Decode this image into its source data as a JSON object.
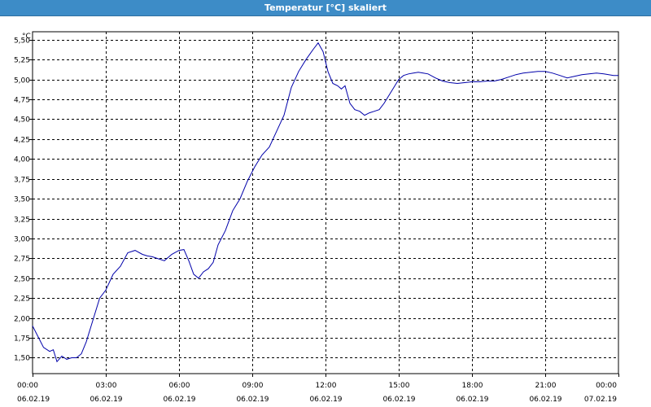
{
  "window": {
    "title": "Temperatur [°C] skaliert"
  },
  "colors": {
    "line": "#0000aa",
    "title_bar": "#3d8cc7",
    "grid": "#000000"
  },
  "chart_data": {
    "type": "line",
    "title": "Temperatur [°C] skaliert",
    "yunit": "°C",
    "xlabel": "",
    "ylabel": "",
    "grid": true,
    "legend": "none",
    "xlim_hours": [
      0,
      24
    ],
    "ylim": [
      1.3,
      5.6
    ],
    "yticks": [
      "1,50",
      "1,75",
      "2,00",
      "2,25",
      "2,50",
      "2,75",
      "3,00",
      "3,25",
      "3,50",
      "3,75",
      "4,00",
      "4,25",
      "4,50",
      "4,75",
      "5,00",
      "5,25",
      "5,50"
    ],
    "ytick_values": [
      1.5,
      1.75,
      2.0,
      2.25,
      2.5,
      2.75,
      3.0,
      3.25,
      3.5,
      3.75,
      4.0,
      4.25,
      4.5,
      4.75,
      5.0,
      5.25,
      5.5
    ],
    "xticks": [
      {
        "time": "00:00",
        "date": "06.02.19"
      },
      {
        "time": "03:00",
        "date": "06.02.19"
      },
      {
        "time": "06:00",
        "date": "06.02.19"
      },
      {
        "time": "09:00",
        "date": "06.02.19"
      },
      {
        "time": "12:00",
        "date": "06.02.19"
      },
      {
        "time": "15:00",
        "date": "06.02.19"
      },
      {
        "time": "18:00",
        "date": "06.02.19"
      },
      {
        "time": "21:00",
        "date": "06.02.19"
      },
      {
        "time": "00:00",
        "date": "07.02.19"
      }
    ],
    "series": [
      {
        "x": [
          0,
          0.2,
          0.45,
          0.7,
          0.85,
          1.0,
          1.2,
          1.4,
          1.6,
          1.8,
          2.0,
          2.2,
          2.5,
          2.75,
          3.0,
          3.3,
          3.6,
          3.9,
          4.2,
          4.5,
          4.7,
          4.9,
          5.1,
          5.4,
          5.7,
          6.0,
          6.2,
          6.4,
          6.6,
          6.8,
          7.0,
          7.2,
          7.4,
          7.6,
          7.9,
          8.2,
          8.5,
          8.8,
          9.1,
          9.4,
          9.7,
          10.0,
          10.3,
          10.6,
          10.9,
          11.2,
          11.5,
          11.7,
          11.9,
          12.1,
          12.3,
          12.5,
          12.65,
          12.8,
          13.0,
          13.2,
          13.4,
          13.6,
          13.8,
          14.0,
          14.2,
          14.4,
          14.6,
          14.8,
          15.0,
          15.2,
          15.4,
          15.6,
          15.8,
          16.0,
          16.2,
          16.5,
          16.8,
          17.1,
          17.4,
          17.7,
          18.0,
          18.3,
          18.6,
          18.9,
          19.2,
          19.5,
          19.8,
          20.1,
          20.4,
          20.7,
          21.0,
          21.3,
          21.6,
          21.9,
          22.2,
          22.5,
          22.8,
          23.1,
          23.4,
          23.6,
          23.8,
          24.0
        ],
        "y": [
          1.9,
          1.78,
          1.63,
          1.58,
          1.6,
          1.45,
          1.52,
          1.48,
          1.5,
          1.5,
          1.55,
          1.7,
          2.0,
          2.25,
          2.35,
          2.55,
          2.65,
          2.82,
          2.85,
          2.8,
          2.78,
          2.77,
          2.75,
          2.72,
          2.8,
          2.85,
          2.86,
          2.72,
          2.55,
          2.5,
          2.58,
          2.62,
          2.7,
          2.92,
          3.1,
          3.35,
          3.5,
          3.72,
          3.9,
          4.05,
          4.15,
          4.35,
          4.55,
          4.9,
          5.1,
          5.25,
          5.38,
          5.46,
          5.35,
          5.1,
          4.95,
          4.92,
          4.88,
          4.92,
          4.7,
          4.62,
          4.6,
          4.55,
          4.58,
          4.6,
          4.62,
          4.7,
          4.8,
          4.9,
          5.0,
          5.05,
          5.07,
          5.08,
          5.09,
          5.08,
          5.07,
          5.02,
          4.98,
          4.96,
          4.95,
          4.96,
          4.97,
          4.97,
          4.98,
          4.98,
          5.0,
          5.03,
          5.06,
          5.08,
          5.09,
          5.1,
          5.1,
          5.08,
          5.05,
          5.02,
          5.04,
          5.06,
          5.07,
          5.08,
          5.07,
          5.06,
          5.05,
          5.05
        ]
      }
    ]
  }
}
